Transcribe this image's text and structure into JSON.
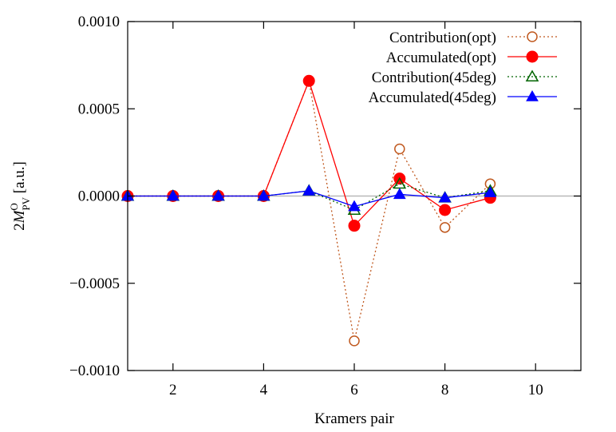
{
  "chart_data": {
    "type": "line",
    "title": "",
    "xlabel": "Kramers pair",
    "ylabel": {
      "prefix": "2",
      "main": "M",
      "superscript": "O",
      "subscript": "PV",
      "suffix": " [a.u.]"
    },
    "xlim": [
      1,
      11
    ],
    "ylim": [
      -0.001,
      0.001
    ],
    "xticks": [
      2,
      4,
      6,
      8,
      10
    ],
    "yticks": [
      -0.001,
      -0.0005,
      0.0,
      0.0005,
      0.001
    ],
    "xtick_labels": [
      "2",
      "4",
      "6",
      "8",
      "10"
    ],
    "ytick_labels": [
      "−0.0010",
      "−0.0005",
      "0.0000",
      "0.0005",
      "0.0010"
    ],
    "grid": false,
    "zero_line": true,
    "legend_position": "top-right",
    "x": [
      1,
      2,
      3,
      4,
      5,
      6,
      7,
      8,
      9
    ],
    "series": [
      {
        "name": "Contribution(opt)",
        "values": [
          0.0,
          0.0,
          0.0,
          0.0,
          0.00066,
          -0.00083,
          0.00027,
          -0.00018,
          7e-05
        ],
        "color": "#c0581e",
        "line_style": "dotted",
        "marker": "open-circle"
      },
      {
        "name": "Accumulated(opt)",
        "values": [
          0.0,
          0.0,
          0.0,
          0.0,
          0.00066,
          -0.00017,
          0.0001,
          -8e-05,
          -1e-05
        ],
        "color": "#ff0000",
        "line_style": "solid",
        "marker": "filled-circle"
      },
      {
        "name": "Contribution(45deg)",
        "values": [
          0.0,
          0.0,
          0.0,
          0.0,
          3e-05,
          -8e-05,
          7e-05,
          -1e-05,
          3e-05
        ],
        "color": "#006400",
        "line_style": "dotted",
        "marker": "open-triangle"
      },
      {
        "name": "Accumulated(45deg)",
        "values": [
          0.0,
          0.0,
          0.0,
          0.0,
          3e-05,
          -6e-05,
          1e-05,
          -1e-05,
          2e-05
        ],
        "color": "#0000ff",
        "line_style": "solid",
        "marker": "filled-triangle"
      }
    ]
  }
}
